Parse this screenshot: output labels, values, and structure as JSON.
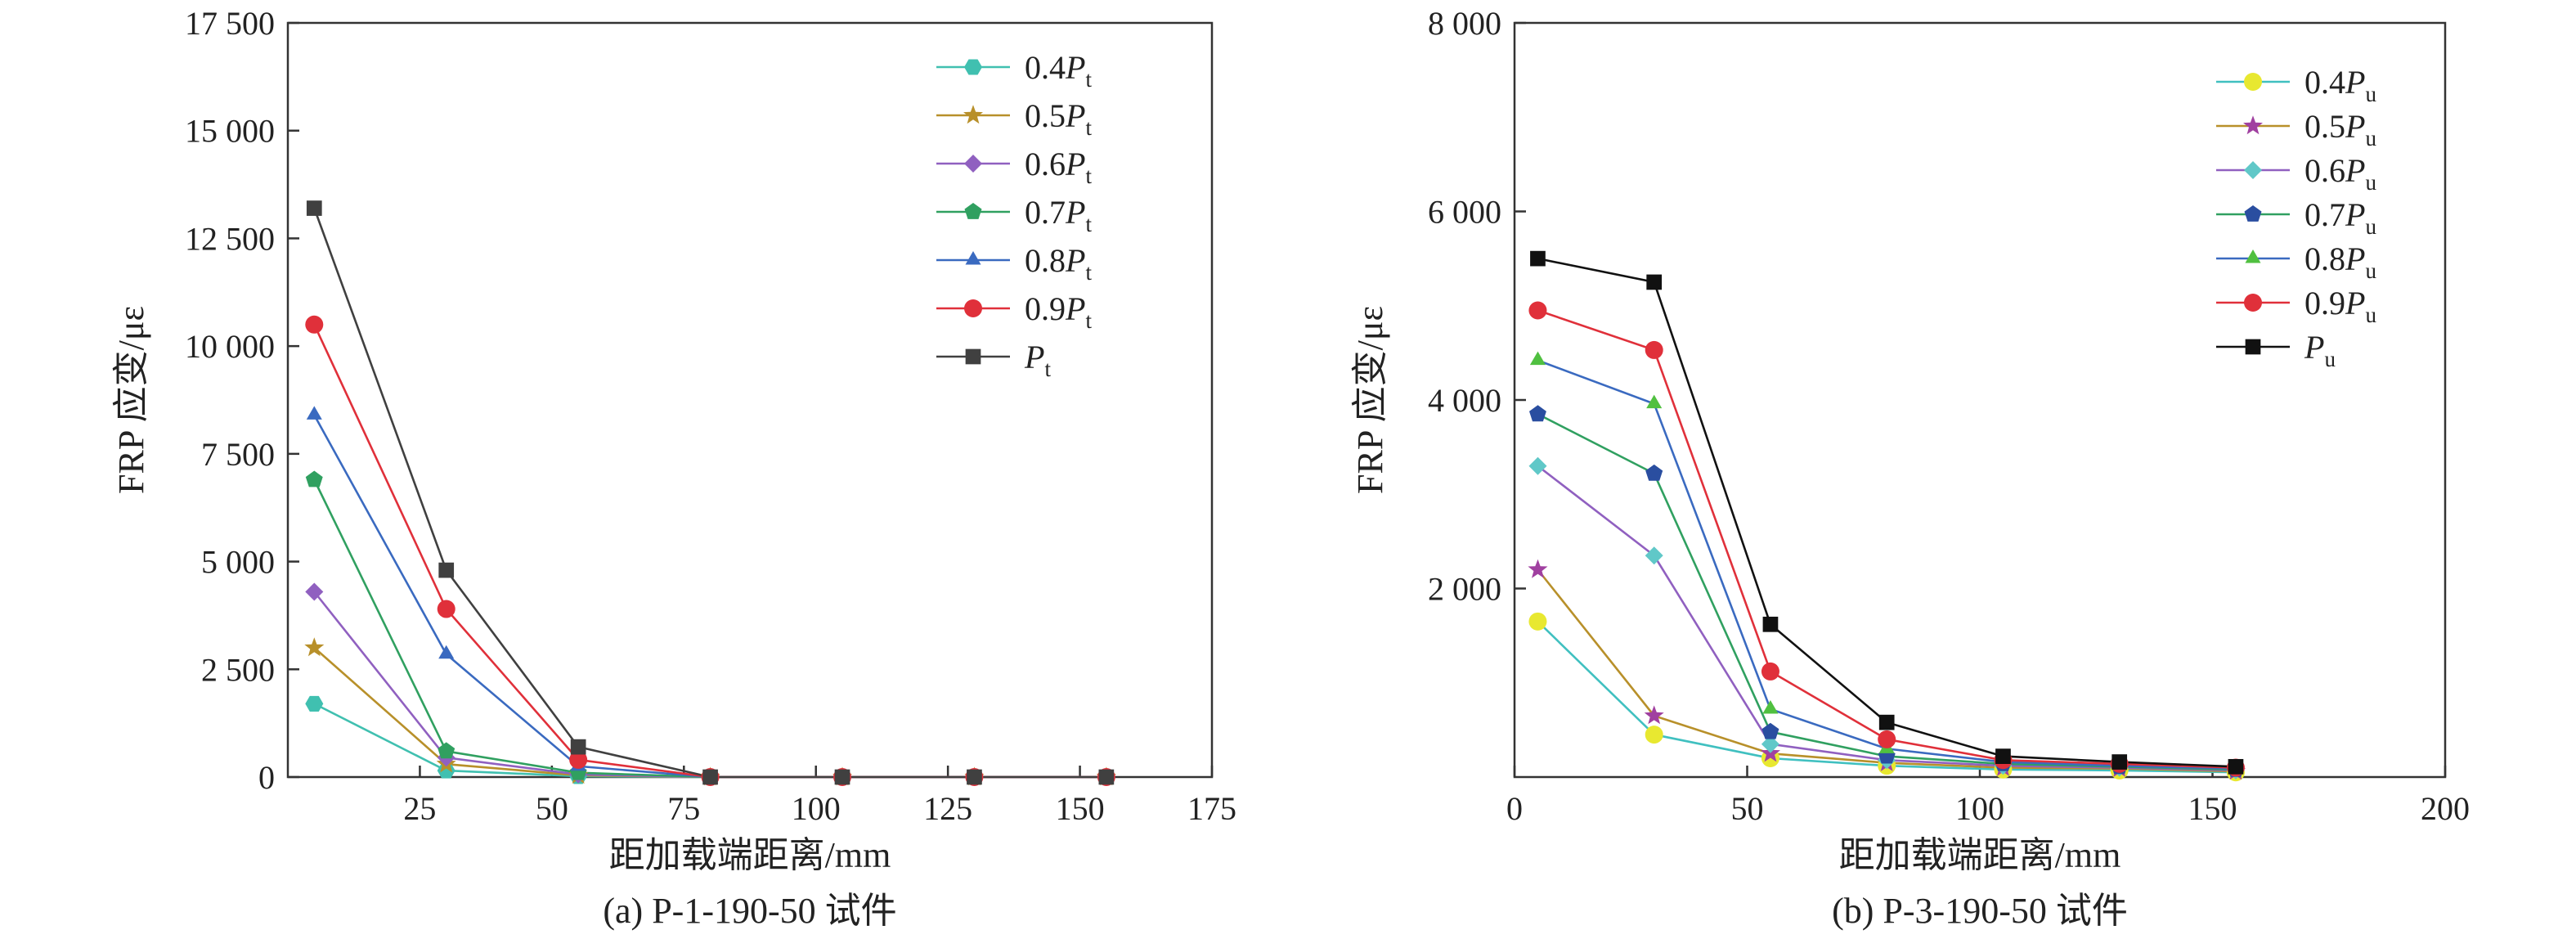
{
  "chart_data": [
    {
      "type": "line",
      "caption": "(a) P-1-190-50 试件",
      "xlabel": "距加载端距离/mm",
      "ylabel": "FRP 应变/με",
      "xlim": [
        0,
        175
      ],
      "ylim": [
        0,
        17500
      ],
      "x_ticks": [
        25,
        50,
        75,
        100,
        125,
        150,
        175
      ],
      "x_tick_labels": [
        "25",
        "50",
        "75",
        "100",
        "125",
        "150",
        "175"
      ],
      "y_ticks": [
        0,
        2500,
        5000,
        7500,
        10000,
        12500,
        15000,
        17500
      ],
      "y_tick_labels": [
        "0",
        "2 500",
        "5 000",
        "7 500",
        "10 000",
        "12 500",
        "15 000",
        "17 500"
      ],
      "legend_position": "top-right",
      "grid": false,
      "x": [
        5,
        30,
        55,
        80,
        105,
        130,
        155
      ],
      "series": [
        {
          "prefix": "0.4",
          "symbol": "P",
          "subscript": "t",
          "color": "#40c0b0",
          "marker": "hexagon",
          "values": [
            1700,
            150,
            20,
            0,
            0,
            0,
            0
          ]
        },
        {
          "prefix": "0.5",
          "symbol": "P",
          "subscript": "t",
          "color": "#b8902a",
          "marker": "star",
          "values": [
            3000,
            300,
            40,
            0,
            0,
            0,
            0
          ]
        },
        {
          "prefix": "0.6",
          "symbol": "P",
          "subscript": "t",
          "color": "#9060c0",
          "marker": "diamond",
          "values": [
            4300,
            450,
            60,
            0,
            0,
            0,
            0
          ]
        },
        {
          "prefix": "0.7",
          "symbol": "P",
          "subscript": "t",
          "color": "#30a060",
          "marker": "pentagon",
          "values": [
            6900,
            600,
            100,
            0,
            0,
            0,
            0
          ]
        },
        {
          "prefix": "0.8",
          "symbol": "P",
          "subscript": "t",
          "color": "#3a6ac0",
          "marker": "triangle",
          "values": [
            8400,
            2850,
            250,
            0,
            0,
            0,
            0
          ]
        },
        {
          "prefix": "0.9",
          "symbol": "P",
          "subscript": "t",
          "color": "#e0303a",
          "marker": "circle",
          "values": [
            10500,
            3900,
            400,
            0,
            0,
            0,
            0
          ]
        },
        {
          "prefix": "",
          "symbol": "P",
          "subscript": "t",
          "color": "#404040",
          "marker": "square",
          "values": [
            13200,
            4800,
            700,
            0,
            0,
            0,
            0
          ]
        }
      ]
    },
    {
      "type": "line",
      "caption": "(b) P-3-190-50 试件",
      "xlabel": "距加载端距离/mm",
      "ylabel": "FRP 应变/με",
      "xlim": [
        0,
        200
      ],
      "ylim": [
        0,
        8000
      ],
      "x_ticks": [
        0,
        50,
        100,
        150,
        200
      ],
      "x_tick_labels": [
        "0",
        "50",
        "100",
        "150",
        "200"
      ],
      "y_ticks": [
        2000,
        4000,
        6000,
        8000
      ],
      "y_tick_labels": [
        "2 000",
        "4 000",
        "6 000",
        "8 000"
      ],
      "legend_position": "top-right",
      "grid": false,
      "x": [
        5,
        30,
        55,
        80,
        105,
        130,
        155
      ],
      "series": [
        {
          "prefix": "0.4",
          "symbol": "P",
          "subscript": "u",
          "color": "#e8e830",
          "line_color": "#40c0c0",
          "marker": "circle",
          "values": [
            1650,
            450,
            200,
            120,
            80,
            70,
            50
          ]
        },
        {
          "prefix": "0.5",
          "symbol": "P",
          "subscript": "u",
          "color": "#a040a0",
          "line_color": "#b8902a",
          "marker": "star",
          "values": [
            2200,
            650,
            250,
            150,
            100,
            90,
            60
          ]
        },
        {
          "prefix": "0.6",
          "symbol": "P",
          "subscript": "u",
          "color": "#60c8c8",
          "line_color": "#9060c0",
          "marker": "diamond",
          "values": [
            3300,
            2350,
            350,
            180,
            120,
            100,
            70
          ]
        },
        {
          "prefix": "0.7",
          "symbol": "P",
          "subscript": "u",
          "color": "#2a4ea0",
          "line_color": "#30a060",
          "marker": "pentagon",
          "values": [
            3850,
            3220,
            480,
            220,
            140,
            110,
            80
          ]
        },
        {
          "prefix": "0.8",
          "symbol": "P",
          "subscript": "u",
          "color": "#50c040",
          "line_color": "#3a6ac0",
          "marker": "triangle",
          "values": [
            4420,
            3960,
            720,
            300,
            160,
            120,
            90
          ]
        },
        {
          "prefix": "0.9",
          "symbol": "P",
          "subscript": "u",
          "color": "#e0303a",
          "line_color": "#e0303a",
          "marker": "circle",
          "values": [
            4950,
            4530,
            1120,
            400,
            180,
            140,
            100
          ]
        },
        {
          "prefix": "",
          "symbol": "P",
          "subscript": "u",
          "color": "#111111",
          "line_color": "#111111",
          "marker": "square",
          "values": [
            5500,
            5250,
            1620,
            580,
            220,
            160,
            110
          ]
        }
      ]
    }
  ]
}
